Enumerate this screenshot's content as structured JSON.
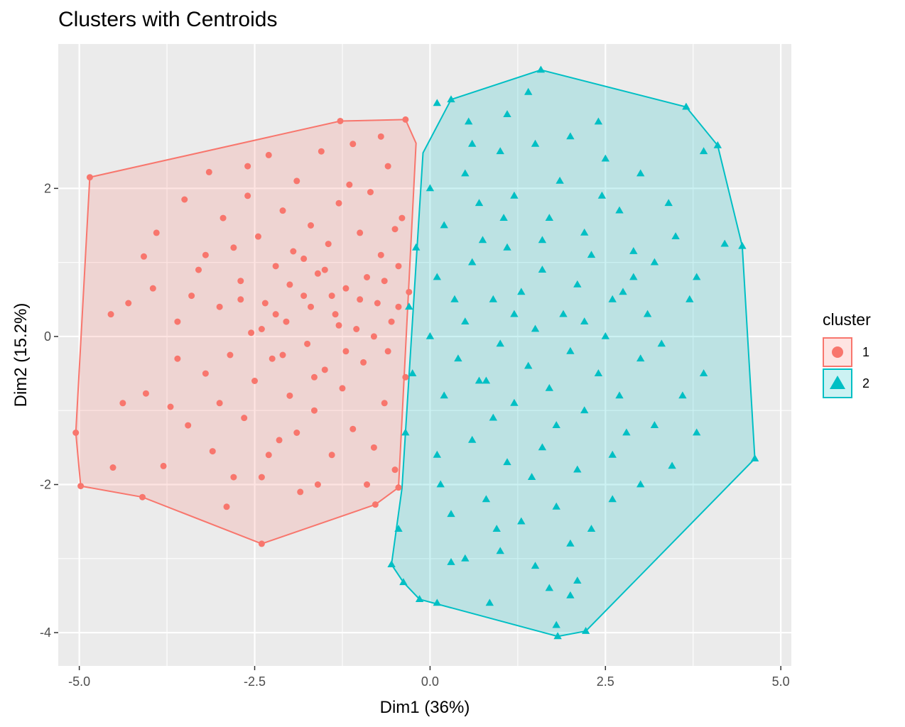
{
  "chart_data": {
    "type": "scatter",
    "title": "Clusters with Centroids",
    "xlabel": "Dim1 (36%)",
    "ylabel": "Dim2 (15.2%)",
    "xlim": [
      -5.3,
      5.15
    ],
    "ylim": [
      -4.45,
      3.95
    ],
    "x_ticks": [
      -5.0,
      -2.5,
      0.0,
      2.5,
      5.0
    ],
    "x_tick_labels": [
      "-5.0",
      "-2.5",
      "0.0",
      "2.5",
      "5.0"
    ],
    "y_ticks": [
      -4,
      -2,
      0,
      2
    ],
    "y_tick_labels": [
      "-4",
      "-2",
      "0",
      "2"
    ],
    "grid": true,
    "panel_background": "#EBEBEB",
    "legend": {
      "title": "cluster",
      "position": "right",
      "items": [
        {
          "label": "1",
          "shape": "circle",
          "color": "#F8766D"
        },
        {
          "label": "2",
          "shape": "triangle",
          "color": "#00BFC4"
        }
      ]
    },
    "series": [
      {
        "name": "1",
        "color": "#F8766D",
        "shape": "circle",
        "hull": [
          [
            -5.05,
            -1.3
          ],
          [
            -4.98,
            -2.02
          ],
          [
            -4.1,
            -2.17
          ],
          [
            -2.4,
            -2.8
          ],
          [
            -0.78,
            -2.27
          ],
          [
            -0.45,
            -2.04
          ],
          [
            -0.2,
            2.61
          ],
          [
            -0.35,
            2.93
          ],
          [
            -1.28,
            2.91
          ],
          [
            -4.85,
            2.15
          ]
        ],
        "points": [
          [
            -4.85,
            2.15
          ],
          [
            -5.05,
            -1.3
          ],
          [
            -4.98,
            -2.02
          ],
          [
            -4.1,
            -2.17
          ],
          [
            -2.4,
            -2.8
          ],
          [
            -0.78,
            -2.27
          ],
          [
            -0.45,
            -2.04
          ],
          [
            -1.28,
            2.91
          ],
          [
            -0.35,
            2.93
          ],
          [
            -4.55,
            0.3
          ],
          [
            -4.52,
            -1.77
          ],
          [
            -4.38,
            -0.9
          ],
          [
            -4.08,
            1.08
          ],
          [
            -4.05,
            -0.77
          ],
          [
            -3.95,
            0.65
          ],
          [
            -3.8,
            -1.75
          ],
          [
            -3.7,
            -0.95
          ],
          [
            -3.6,
            0.2
          ],
          [
            -3.5,
            1.85
          ],
          [
            -3.45,
            -1.2
          ],
          [
            -3.3,
            0.9
          ],
          [
            -3.2,
            -0.5
          ],
          [
            -3.15,
            2.22
          ],
          [
            -3.1,
            -1.55
          ],
          [
            -3.0,
            0.4
          ],
          [
            -2.95,
            1.6
          ],
          [
            -2.9,
            -2.3
          ],
          [
            -2.85,
            -0.25
          ],
          [
            -2.8,
            1.2
          ],
          [
            -2.7,
            0.75
          ],
          [
            -2.65,
            -1.1
          ],
          [
            -2.6,
            1.9
          ],
          [
            -2.55,
            0.05
          ],
          [
            -2.5,
            -0.6
          ],
          [
            -2.45,
            1.35
          ],
          [
            -2.4,
            -1.9
          ],
          [
            -2.35,
            0.45
          ],
          [
            -2.3,
            2.45
          ],
          [
            -2.25,
            -0.3
          ],
          [
            -2.2,
            0.95
          ],
          [
            -2.15,
            -1.4
          ],
          [
            -2.1,
            1.7
          ],
          [
            -2.05,
            0.2
          ],
          [
            -2.0,
            -0.8
          ],
          [
            -1.95,
            1.15
          ],
          [
            -1.9,
            2.1
          ],
          [
            -1.85,
            -2.1
          ],
          [
            -1.8,
            0.55
          ],
          [
            -1.75,
            -0.1
          ],
          [
            -1.7,
            1.5
          ],
          [
            -1.65,
            -1.0
          ],
          [
            -1.6,
            0.85
          ],
          [
            -1.55,
            2.5
          ],
          [
            -1.5,
            -0.45
          ],
          [
            -1.45,
            1.25
          ],
          [
            -1.4,
            -1.6
          ],
          [
            -1.35,
            0.3
          ],
          [
            -1.3,
            1.8
          ],
          [
            -1.25,
            -0.7
          ],
          [
            -1.2,
            0.65
          ],
          [
            -1.15,
            2.05
          ],
          [
            -1.1,
            -1.25
          ],
          [
            -1.05,
            0.1
          ],
          [
            -1.0,
            1.4
          ],
          [
            -0.95,
            -0.35
          ],
          [
            -0.9,
            0.8
          ],
          [
            -0.85,
            1.95
          ],
          [
            -0.8,
            -1.5
          ],
          [
            -0.75,
            0.45
          ],
          [
            -0.7,
            1.1
          ],
          [
            -0.65,
            -0.9
          ],
          [
            -0.6,
            2.3
          ],
          [
            -0.55,
            0.2
          ],
          [
            -0.5,
            -1.8
          ],
          [
            -0.45,
            0.95
          ],
          [
            -0.4,
            1.6
          ],
          [
            -0.35,
            -0.55
          ],
          [
            -0.3,
            0.6
          ],
          [
            -0.5,
            1.45
          ],
          [
            -0.6,
            -0.2
          ],
          [
            -0.7,
            2.7
          ],
          [
            -1.6,
            -2.0
          ],
          [
            -2.8,
            -1.9
          ],
          [
            -3.6,
            -0.3
          ],
          [
            -3.9,
            1.4
          ],
          [
            -4.3,
            0.45
          ],
          [
            -3.2,
            1.1
          ],
          [
            -2.1,
            -0.25
          ],
          [
            -1.1,
            2.6
          ],
          [
            -2.6,
            2.3
          ],
          [
            -3.4,
            0.55
          ],
          [
            -1.9,
            -1.3
          ],
          [
            -0.9,
            -2.0
          ],
          [
            -1.4,
            0.55
          ],
          [
            -2.3,
            -1.6
          ],
          [
            -3.0,
            -0.9
          ],
          [
            -1.7,
            0.4
          ],
          [
            -2.0,
            0.7
          ],
          [
            -1.5,
            0.9
          ],
          [
            -2.2,
            0.3
          ],
          [
            -1.8,
            1.05
          ],
          [
            -1.3,
            0.15
          ],
          [
            -2.4,
            0.1
          ],
          [
            -1.0,
            0.5
          ],
          [
            -0.8,
            0.0
          ],
          [
            -1.2,
            -0.2
          ],
          [
            -2.7,
            0.5
          ],
          [
            -1.65,
            -0.55
          ],
          [
            -0.45,
            0.4
          ],
          [
            -0.65,
            0.75
          ]
        ]
      },
      {
        "name": "2",
        "color": "#00BFC4",
        "shape": "triangle",
        "hull": [
          [
            1.58,
            3.6
          ],
          [
            3.65,
            3.1
          ],
          [
            4.1,
            2.58
          ],
          [
            4.45,
            1.22
          ],
          [
            4.63,
            -1.65
          ],
          [
            2.22,
            -3.98
          ],
          [
            1.82,
            -4.05
          ],
          [
            -0.15,
            -3.55
          ],
          [
            -0.38,
            -3.32
          ],
          [
            -0.55,
            -3.08
          ],
          [
            -0.4,
            -2.05
          ],
          [
            -0.1,
            2.48
          ],
          [
            0.3,
            3.2
          ]
        ],
        "points": [
          [
            1.58,
            3.6
          ],
          [
            3.65,
            3.1
          ],
          [
            4.1,
            2.58
          ],
          [
            4.45,
            1.22
          ],
          [
            4.63,
            -1.65
          ],
          [
            2.22,
            -3.98
          ],
          [
            1.82,
            -4.05
          ],
          [
            -0.15,
            -3.55
          ],
          [
            -0.38,
            -3.32
          ],
          [
            -0.55,
            -3.08
          ],
          [
            0.3,
            3.2
          ],
          [
            0.1,
            3.15
          ],
          [
            0.55,
            2.9
          ],
          [
            1.4,
            3.3
          ],
          [
            3.9,
            2.5
          ],
          [
            4.2,
            1.25
          ],
          [
            3.5,
            1.35
          ],
          [
            2.9,
            1.15
          ],
          [
            0.1,
            -3.6
          ],
          [
            0.3,
            -3.05
          ],
          [
            0.85,
            -3.6
          ],
          [
            1.8,
            -3.9
          ],
          [
            2.0,
            -3.5
          ],
          [
            3.45,
            -1.75
          ],
          [
            3.8,
            -1.3
          ],
          [
            3.9,
            -0.5
          ],
          [
            3.7,
            0.5
          ],
          [
            3.8,
            0.8
          ],
          [
            0.0,
            2.0
          ],
          [
            0.5,
            2.2
          ],
          [
            1.0,
            2.5
          ],
          [
            1.5,
            2.6
          ],
          [
            2.0,
            2.7
          ],
          [
            2.5,
            2.4
          ],
          [
            3.0,
            2.2
          ],
          [
            0.2,
            1.5
          ],
          [
            0.7,
            1.8
          ],
          [
            1.2,
            1.9
          ],
          [
            1.7,
            1.6
          ],
          [
            2.2,
            1.4
          ],
          [
            2.7,
            1.7
          ],
          [
            3.2,
            1.0
          ],
          [
            0.1,
            0.8
          ],
          [
            0.6,
            1.0
          ],
          [
            1.1,
            1.2
          ],
          [
            1.6,
            0.9
          ],
          [
            2.1,
            0.7
          ],
          [
            2.6,
            0.5
          ],
          [
            3.1,
            0.3
          ],
          [
            0.0,
            0.0
          ],
          [
            0.5,
            0.2
          ],
          [
            1.0,
            -0.1
          ],
          [
            1.5,
            0.1
          ],
          [
            2.0,
            -0.2
          ],
          [
            2.5,
            0.0
          ],
          [
            3.0,
            -0.3
          ],
          [
            0.2,
            -0.8
          ],
          [
            0.7,
            -0.6
          ],
          [
            1.2,
            -0.9
          ],
          [
            1.7,
            -0.7
          ],
          [
            2.2,
            -1.0
          ],
          [
            2.7,
            -0.8
          ],
          [
            3.2,
            -1.2
          ],
          [
            0.1,
            -1.6
          ],
          [
            0.6,
            -1.4
          ],
          [
            1.1,
            -1.7
          ],
          [
            1.6,
            -1.5
          ],
          [
            2.1,
            -1.8
          ],
          [
            2.6,
            -1.6
          ],
          [
            3.0,
            -2.0
          ],
          [
            0.3,
            -2.4
          ],
          [
            0.8,
            -2.2
          ],
          [
            1.3,
            -2.5
          ],
          [
            1.8,
            -2.3
          ],
          [
            2.3,
            -2.6
          ],
          [
            0.5,
            -3.0
          ],
          [
            1.0,
            -2.9
          ],
          [
            1.5,
            -3.1
          ],
          [
            2.0,
            -2.8
          ],
          [
            -0.2,
            1.2
          ],
          [
            -0.3,
            0.4
          ],
          [
            -0.25,
            -0.5
          ],
          [
            -0.35,
            -1.3
          ],
          [
            -0.45,
            -2.6
          ],
          [
            0.9,
            0.5
          ],
          [
            1.4,
            -0.4
          ],
          [
            1.9,
            0.3
          ],
          [
            2.4,
            -0.5
          ],
          [
            2.9,
            0.8
          ],
          [
            0.4,
            -0.3
          ],
          [
            1.3,
            0.6
          ],
          [
            1.8,
            -1.2
          ],
          [
            2.3,
            1.1
          ],
          [
            2.8,
            -1.3
          ],
          [
            0.6,
            2.6
          ],
          [
            1.1,
            3.0
          ],
          [
            2.4,
            2.9
          ],
          [
            3.4,
            1.8
          ],
          [
            3.6,
            -0.8
          ],
          [
            0.9,
            -1.1
          ],
          [
            1.6,
            1.3
          ],
          [
            2.2,
            0.2
          ],
          [
            1.2,
            0.3
          ],
          [
            0.8,
            -0.6
          ],
          [
            2.6,
            -2.2
          ],
          [
            1.7,
            -3.4
          ],
          [
            2.1,
            -3.3
          ],
          [
            0.95,
            -2.6
          ],
          [
            1.45,
            -1.9
          ],
          [
            0.35,
            0.5
          ],
          [
            2.75,
            0.6
          ],
          [
            3.3,
            -0.1
          ],
          [
            0.15,
            -2.0
          ],
          [
            1.05,
            1.6
          ],
          [
            2.45,
            1.9
          ],
          [
            0.75,
            1.3
          ],
          [
            1.85,
            2.1
          ]
        ]
      }
    ]
  }
}
